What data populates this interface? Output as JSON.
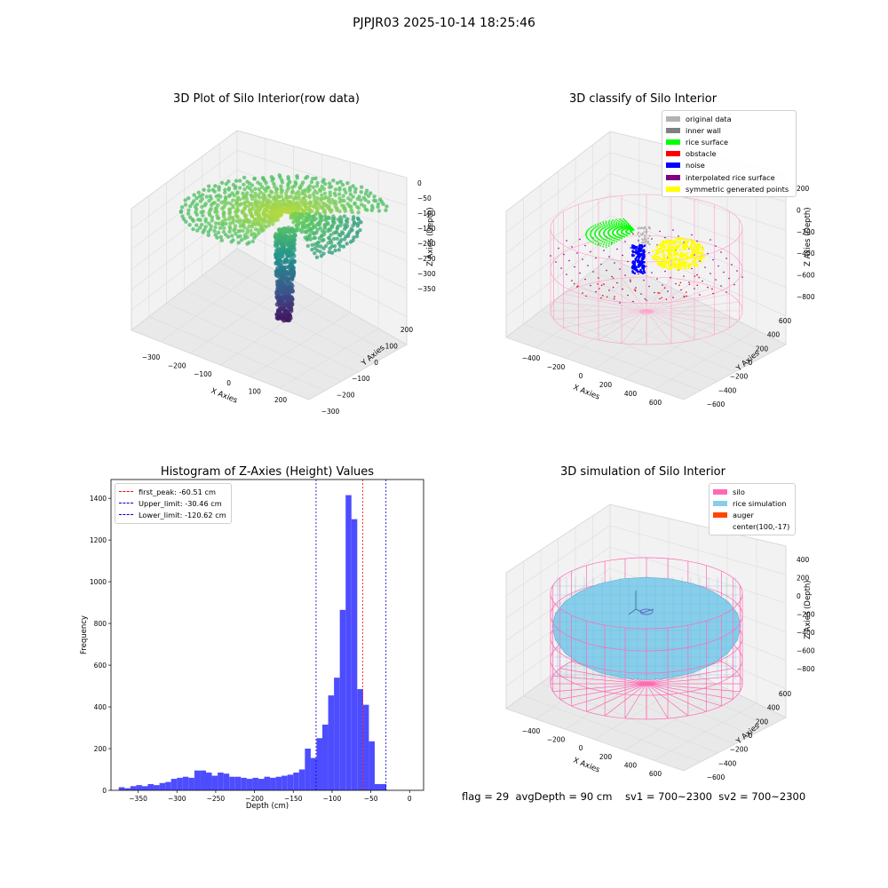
{
  "suptitle": "PJPJR03 2025-10-14 18:25:46",
  "status_text": "flag = 29  avgDepth = 90 cm    sv1 = 700~2300  sv2 = 700~2300",
  "chart_data": [
    {
      "type": "scatter",
      "title": "3D Plot of Silo Interior(row data)",
      "xlabel": "X Axies",
      "ylabel": "Y Axies",
      "zlabel": "Z Axies (Depth)",
      "x_ticks": [
        "−300",
        "−200",
        "−100",
        "0",
        "100",
        "200"
      ],
      "y_ticks": [
        "−300",
        "−200",
        "−100",
        "0",
        "100",
        "200"
      ],
      "z_ticks": [
        "0",
        "−50",
        "−100",
        "−150",
        "−200",
        "−250",
        "−300",
        "−350"
      ],
      "colormap": "viridis",
      "xlim": [
        -350,
        250
      ],
      "ylim": [
        -300,
        300
      ],
      "zlim": [
        -380,
        10
      ]
    },
    {
      "type": "scatter",
      "title": "3D classify of Silo Interior",
      "xlabel": "X Axies",
      "ylabel": "Y Axies",
      "zlabel": "Z Axies (Depth)",
      "x_ticks": [
        "−400",
        "−200",
        "0",
        "200",
        "400",
        "600"
      ],
      "y_ticks": [
        "−600",
        "−400",
        "−200",
        "0",
        "200",
        "400",
        "600"
      ],
      "z_ticks": [
        "200",
        "0",
        "−200",
        "−400",
        "−600",
        "−800"
      ],
      "legend": [
        {
          "label": "original data",
          "color": "#b3b3b3"
        },
        {
          "label": "inner wall",
          "color": "#808080"
        },
        {
          "label": "rice surface",
          "color": "#00ff00"
        },
        {
          "label": "obstacle",
          "color": "#ff0000"
        },
        {
          "label": "noise",
          "color": "#0000ff"
        },
        {
          "label": "interpolated rice surface",
          "color": "#800080"
        },
        {
          "label": "symmetric generated points",
          "color": "#ffff00"
        }
      ]
    },
    {
      "type": "bar",
      "title": "Histogram of Z-Axies (Height) Values",
      "xlabel": "Depth (cm)",
      "ylabel": "Frequency",
      "xlim": [
        -385,
        18
      ],
      "ylim": [
        0,
        1490
      ],
      "x_ticks": [
        -350,
        -300,
        -250,
        -200,
        -150,
        -100,
        -50,
        0
      ],
      "x_tick_labels": [
        "−350",
        "−300",
        "−250",
        "−200",
        "−150",
        "−100",
        "−50",
        "0"
      ],
      "y_ticks": [
        0,
        200,
        400,
        600,
        800,
        1000,
        1200,
        1400
      ],
      "bar_color": "#4d4dff",
      "bins": {
        "start": -375,
        "width": 7.5,
        "values": [
          15,
          10,
          20,
          25,
          20,
          30,
          25,
          35,
          40,
          55,
          60,
          65,
          60,
          95,
          95,
          85,
          70,
          85,
          80,
          65,
          65,
          60,
          55,
          60,
          55,
          65,
          60,
          65,
          70,
          75,
          85,
          100,
          200,
          155,
          250,
          315,
          455,
          540,
          865,
          1415,
          1300,
          485,
          410,
          235,
          30,
          30
        ]
      },
      "vlines": [
        {
          "label": "first_peak: -60.51 cm",
          "x": -60.51,
          "color": "#ff0000"
        },
        {
          "label": "Upper_limit: -30.46 cm",
          "x": -30.46,
          "color": "#0000cc"
        },
        {
          "label": "Lower_limit: -120.62 cm",
          "x": -120.62,
          "color": "#0000cc"
        }
      ]
    },
    {
      "type": "scatter",
      "title": "3D simulation of Silo Interior",
      "xlabel": "X Axies",
      "ylabel": "Y Axies",
      "zlabel": "Z Axies (Depth)",
      "x_ticks": [
        "−400",
        "−200",
        "0",
        "200",
        "400",
        "600"
      ],
      "y_ticks": [
        "−600",
        "−400",
        "−200",
        "0",
        "200",
        "400",
        "600"
      ],
      "z_ticks": [
        "400",
        "200",
        "0",
        "−200",
        "−400",
        "−600",
        "−800"
      ],
      "legend": [
        {
          "label": "silo",
          "color": "#ff69b4"
        },
        {
          "label": "rice simulation",
          "color": "#87ceeb"
        },
        {
          "label": "auger",
          "color": "#ff4500"
        },
        {
          "label": "center(100,-17)",
          "color": ""
        }
      ]
    }
  ]
}
